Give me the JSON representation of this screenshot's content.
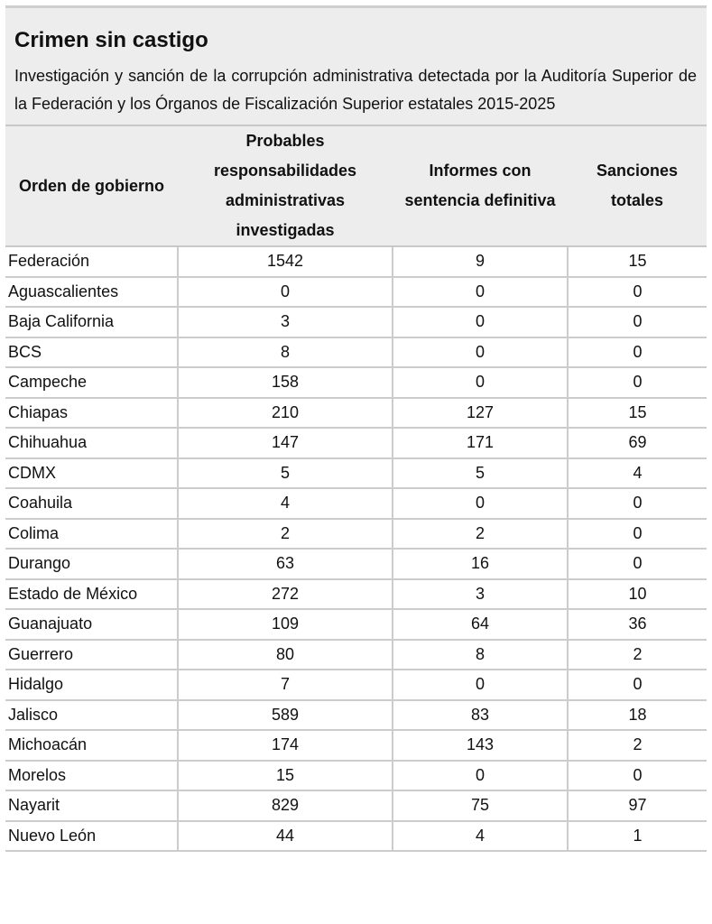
{
  "title": "Crimen sin castigo",
  "subtitle": "Investigación y sanción de la corrupción administrativa detectada por la Auditoría Superior de la Federación y los Órganos de Fiscalización Superior estatales 2015-2025",
  "columns": [
    "Orden de gobierno",
    "Probables responsabilidades administrativas investigadas",
    "Informes con sentencia definitiva",
    "Sanciones totales"
  ],
  "rows": [
    [
      "Federación",
      "1542",
      "9",
      "15"
    ],
    [
      "Aguascalientes",
      "0",
      "0",
      "0"
    ],
    [
      "Baja California",
      "3",
      "0",
      "0"
    ],
    [
      "BCS",
      "8",
      "0",
      "0"
    ],
    [
      "Campeche",
      "158",
      "0",
      "0"
    ],
    [
      "Chiapas",
      "210",
      "127",
      "15"
    ],
    [
      "Chihuahua",
      "147",
      "171",
      "69"
    ],
    [
      "CDMX",
      "5",
      "5",
      "4"
    ],
    [
      "Coahuila",
      "4",
      "0",
      "0"
    ],
    [
      "Colima",
      "2",
      "2",
      "0"
    ],
    [
      "Durango",
      "63",
      "16",
      "0"
    ],
    [
      "Estado de México",
      "272",
      "3",
      "10"
    ],
    [
      "Guanajuato",
      "109",
      "64",
      "36"
    ],
    [
      "Guerrero",
      "80",
      "8",
      "2"
    ],
    [
      "Hidalgo",
      "7",
      "0",
      "0"
    ],
    [
      "Jalisco",
      "589",
      "83",
      "18"
    ],
    [
      "Michoacán",
      "174",
      "143",
      "2"
    ],
    [
      "Morelos",
      "15",
      "0",
      "0"
    ],
    [
      "Nayarit",
      "829",
      "75",
      "97"
    ],
    [
      "Nuevo León",
      "44",
      "4",
      "1"
    ]
  ]
}
